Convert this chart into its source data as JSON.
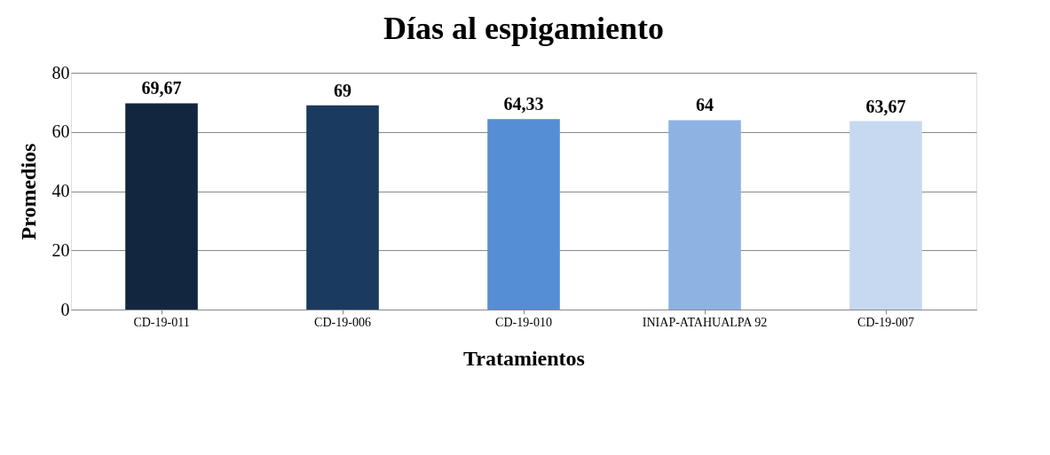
{
  "chart_data": {
    "type": "bar",
    "title": "Días al espigamiento",
    "xlabel": "Tratamientos",
    "ylabel": "Promedios",
    "categories": [
      "CD-19-011",
      "CD-19-006",
      "CD-19-010",
      "INIAP-ATAHUALPA 92",
      "CD-19-007"
    ],
    "values": [
      69.67,
      69,
      64.33,
      64,
      63.67
    ],
    "value_labels": [
      "69,67",
      "69",
      "64,33",
      "64",
      "63,67"
    ],
    "colors": [
      "#12263f",
      "#1a3a60",
      "#558ed5",
      "#8db3e2",
      "#c6d9f1"
    ],
    "ylim": [
      0,
      80
    ],
    "yticks": [
      0,
      20,
      40,
      60,
      80
    ],
    "grid": "y",
    "legend": false
  }
}
